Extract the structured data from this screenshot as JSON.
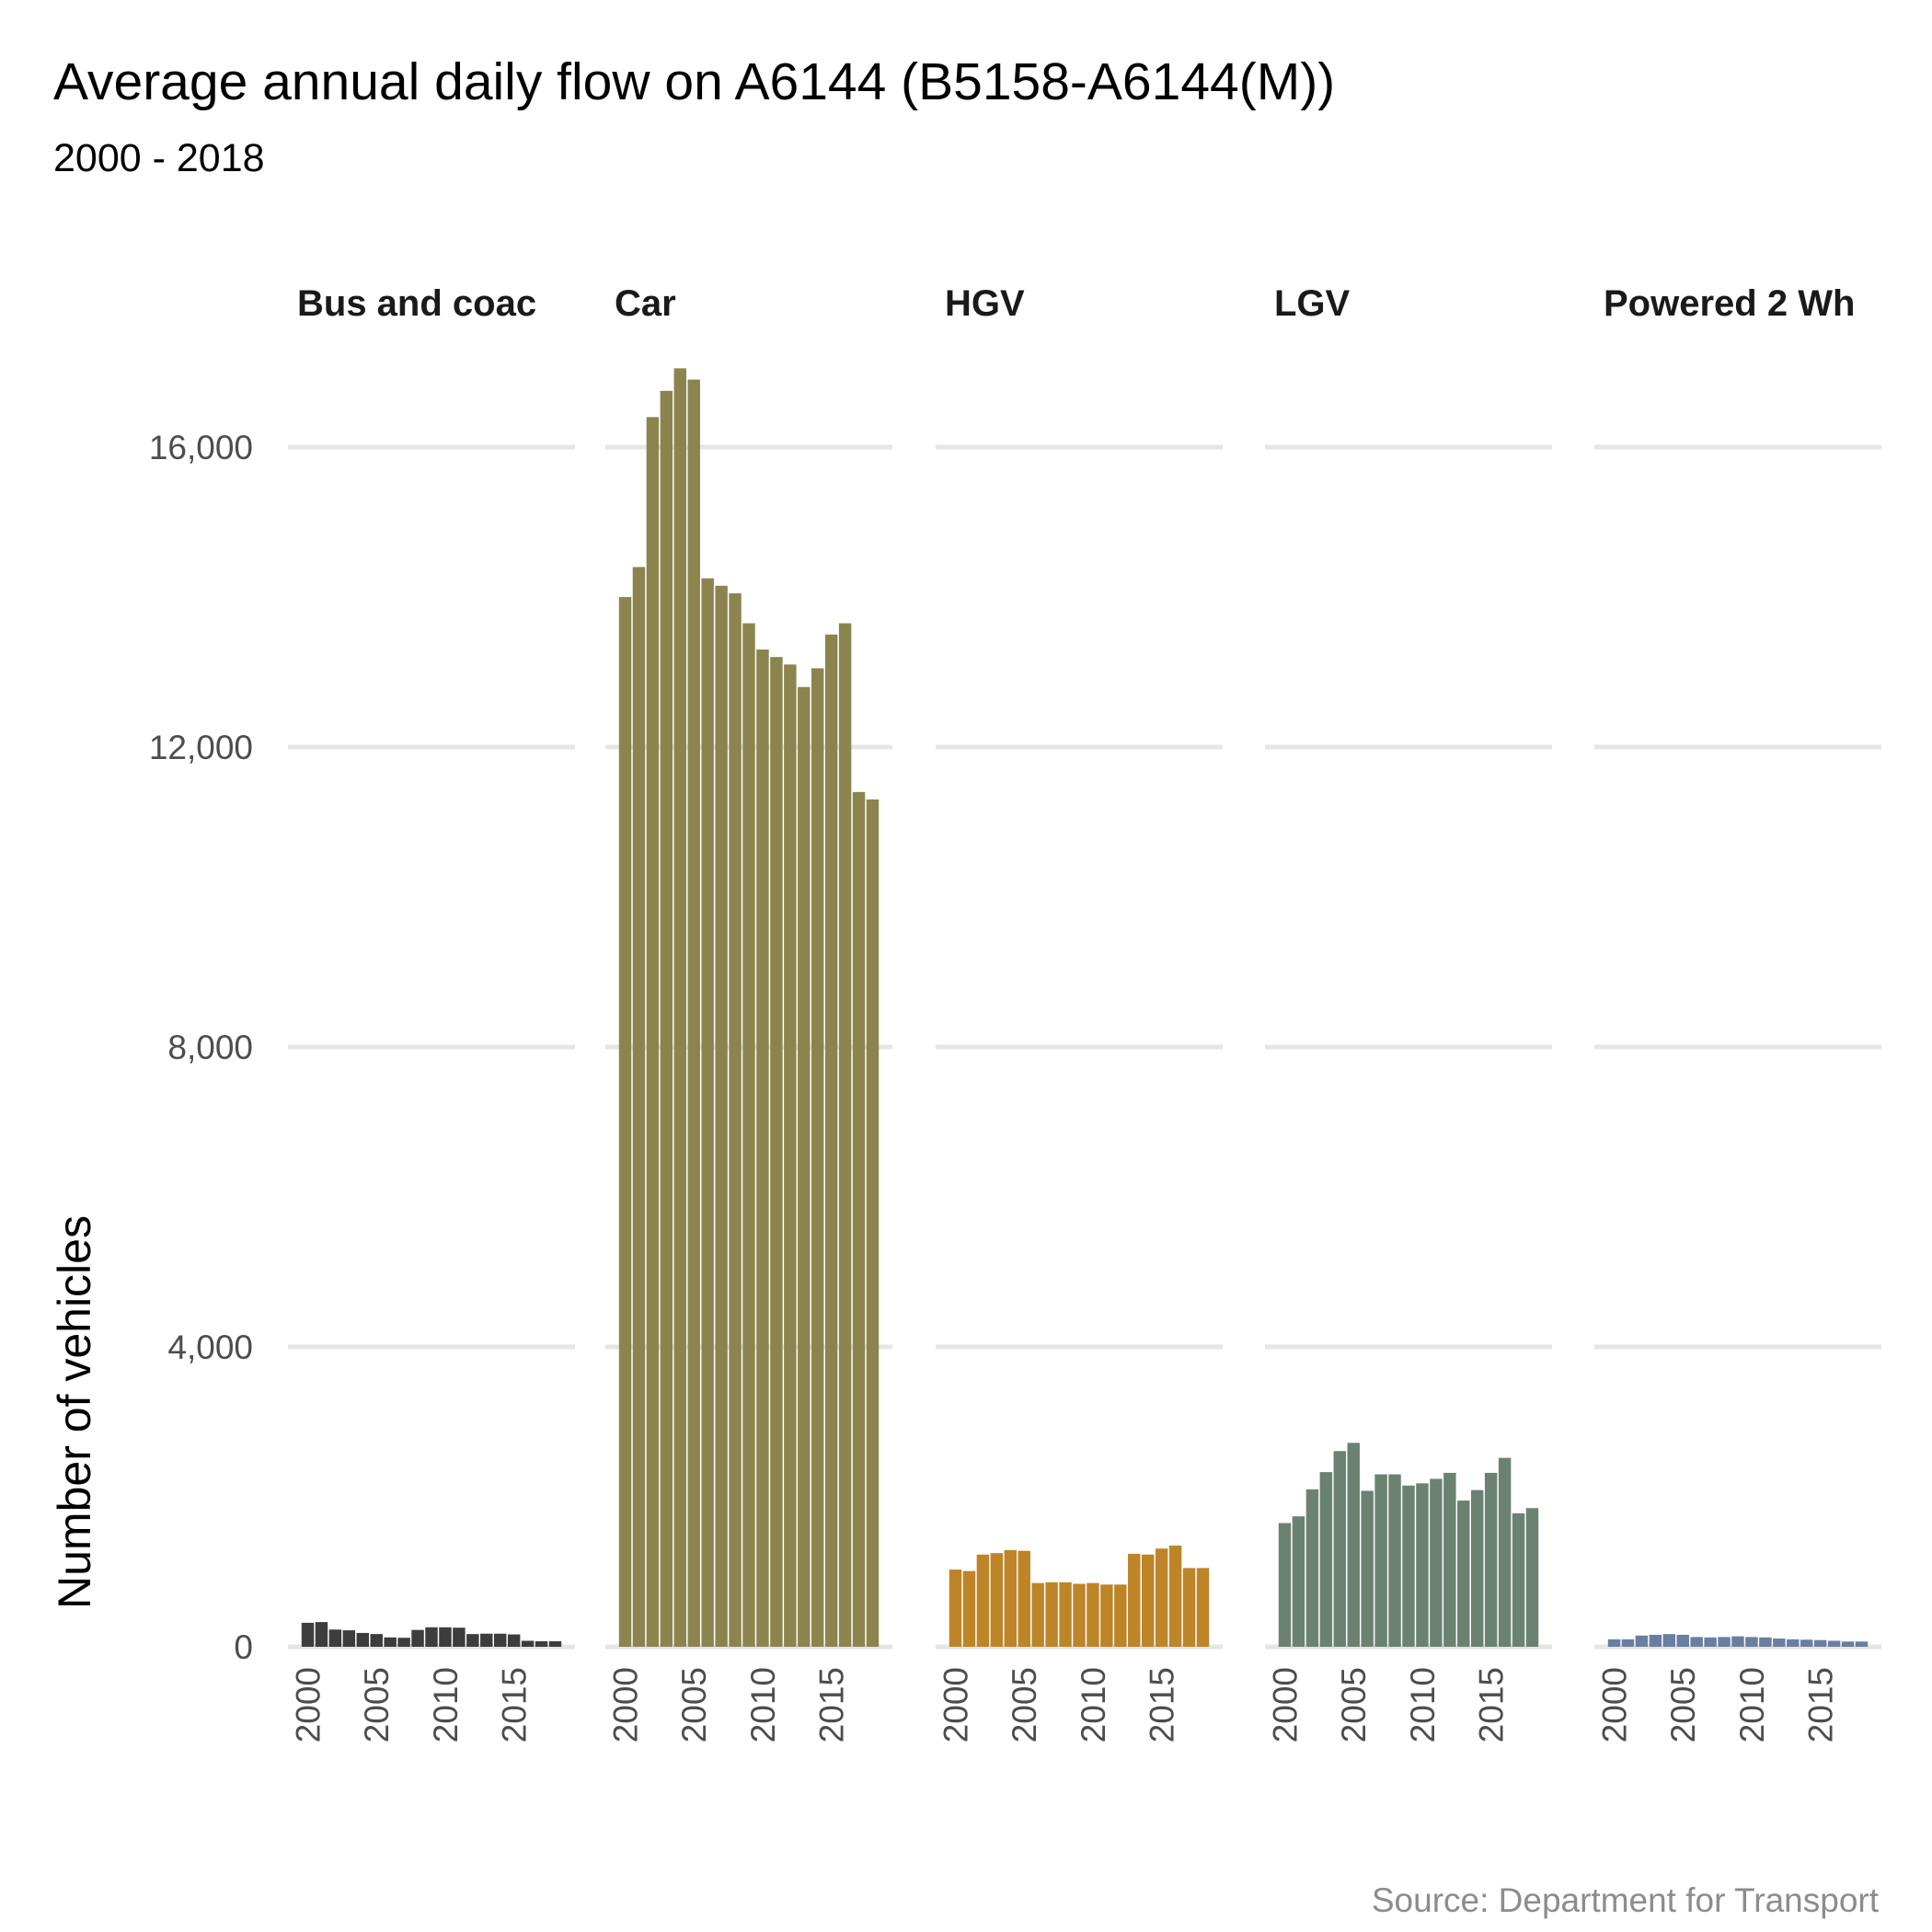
{
  "chart_data": {
    "type": "bar",
    "title": "Average annual daily flow on A6144 (B5158-A6144(M))",
    "subtitle": "2000 - 2018",
    "ylabel": "Number of vehicles",
    "xlabel": "",
    "caption": "Source: Department for Transport",
    "ylim": [
      0,
      17300
    ],
    "yticks": [
      0,
      4000,
      8000,
      12000,
      16000
    ],
    "ytick_labels": [
      "0",
      "4,000",
      "8,000",
      "12,000",
      "16,000"
    ],
    "xticks": [
      2000,
      2005,
      2010,
      2015
    ],
    "xtick_labels": [
      "2000",
      "2005",
      "2010",
      "2015"
    ],
    "grid": "horizontal",
    "legend": "none",
    "categories": [
      2000,
      2001,
      2002,
      2003,
      2004,
      2005,
      2006,
      2007,
      2008,
      2009,
      2010,
      2011,
      2012,
      2013,
      2014,
      2015,
      2016,
      2017,
      2018
    ],
    "series": [
      {
        "name": "Bus and coac",
        "color": "#3d3d3d",
        "values": [
          320,
          330,
          230,
          220,
          185,
          170,
          125,
          120,
          225,
          260,
          260,
          255,
          170,
          175,
          175,
          165,
          80,
          75,
          75
        ]
      },
      {
        "name": "Car",
        "color": "#8c844f",
        "values": [
          14000,
          14400,
          16400,
          16750,
          17050,
          16900,
          14250,
          14150,
          14050,
          13650,
          13300,
          13200,
          13100,
          12800,
          13050,
          13500,
          13650,
          11400,
          11300
        ]
      },
      {
        "name": "HGV",
        "color": "#bd8428",
        "values": [
          1030,
          1010,
          1230,
          1250,
          1290,
          1280,
          850,
          860,
          860,
          840,
          850,
          830,
          830,
          1240,
          1230,
          1310,
          1350,
          1050,
          1050
        ]
      },
      {
        "name": "LGV",
        "color": "#6b8272",
        "values": [
          1650,
          1740,
          2100,
          2330,
          2610,
          2720,
          2080,
          2300,
          2300,
          2150,
          2180,
          2240,
          2320,
          1950,
          2090,
          2320,
          2520,
          1780,
          1850
        ]
      },
      {
        "name": "Powered 2 Wh",
        "color": "#6a7f9f",
        "values": [
          100,
          100,
          150,
          160,
          170,
          160,
          130,
          125,
          130,
          140,
          130,
          125,
          110,
          100,
          95,
          90,
          80,
          70,
          70
        ]
      }
    ]
  }
}
